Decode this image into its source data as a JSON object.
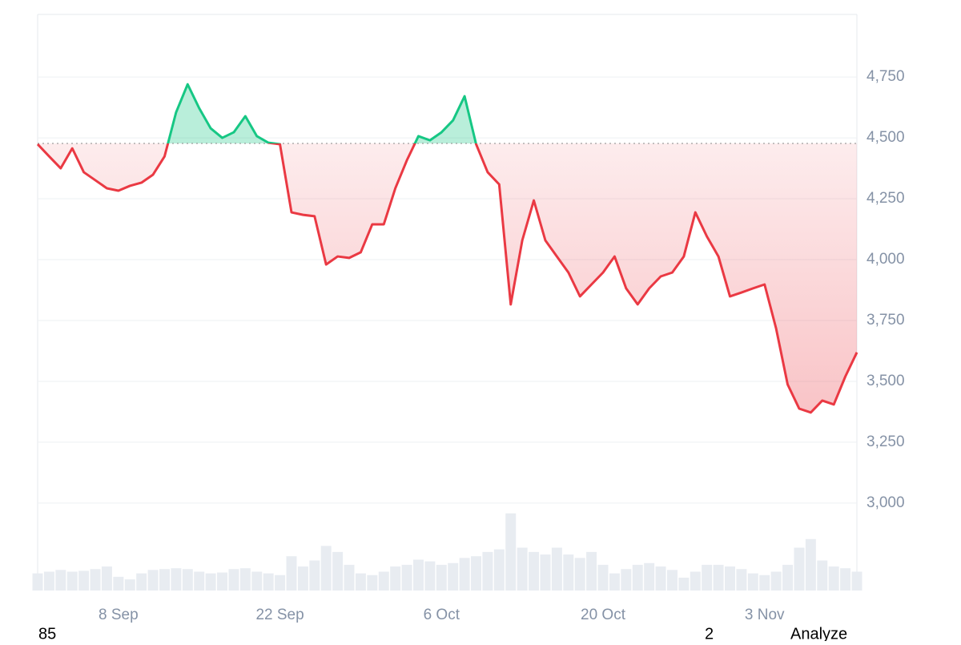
{
  "chart_data": {
    "type": "line",
    "x": [
      "1 Sep",
      "2 Sep",
      "3 Sep",
      "4 Sep",
      "5 Sep",
      "6 Sep",
      "7 Sep",
      "8 Sep",
      "9 Sep",
      "10 Sep",
      "11 Sep",
      "12 Sep",
      "13 Sep",
      "14 Sep",
      "15 Sep",
      "16 Sep",
      "17 Sep",
      "18 Sep",
      "19 Sep",
      "20 Sep",
      "21 Sep",
      "22 Sep",
      "23 Sep",
      "24 Sep",
      "25 Sep",
      "26 Sep",
      "27 Sep",
      "28 Sep",
      "29 Sep",
      "30 Sep",
      "1 Oct",
      "2 Oct",
      "3 Oct",
      "4 Oct",
      "5 Oct",
      "6 Oct",
      "7 Oct",
      "8 Oct",
      "9 Oct",
      "10 Oct",
      "11 Oct",
      "12 Oct",
      "13 Oct",
      "14 Oct",
      "15 Oct",
      "16 Oct",
      "17 Oct",
      "18 Oct",
      "19 Oct",
      "20 Oct",
      "21 Oct",
      "22 Oct",
      "23 Oct",
      "24 Oct",
      "25 Oct",
      "26 Oct",
      "27 Oct",
      "28 Oct",
      "29 Oct",
      "30 Oct",
      "31 Oct",
      "1 Nov",
      "2 Nov",
      "3 Nov",
      "4 Nov",
      "5 Nov",
      "6 Nov",
      "7 Nov",
      "8 Nov",
      "9 Nov",
      "10 Nov",
      "11 Nov"
    ],
    "series": [
      {
        "name": "Price",
        "values": [
          4474,
          4424,
          4375,
          4457,
          4359,
          4326,
          4293,
          4283,
          4303,
          4316,
          4349,
          4424,
          4605,
          4720,
          4622,
          4539,
          4500,
          4523,
          4589,
          4507,
          4480,
          4474,
          4194,
          4184,
          4178,
          3980,
          4013,
          4007,
          4030,
          4145,
          4145,
          4293,
          4408,
          4507,
          4490,
          4523,
          4572,
          4671,
          4474,
          4359,
          4309,
          3816,
          4079,
          4243,
          4079,
          4013,
          3947,
          3849,
          3898,
          3947,
          4013,
          3882,
          3816,
          3882,
          3931,
          3947,
          4013,
          4194,
          4095,
          4013,
          3849,
          3865,
          3882,
          3898,
          3717,
          3487,
          3388,
          3372,
          3421,
          3405,
          3520,
          3619
        ]
      },
      {
        "name": "Volume",
        "axis": "y2",
        "color": "#e8ecf1",
        "values": [
          20,
          22,
          24,
          22,
          23,
          25,
          28,
          16,
          13,
          20,
          24,
          25,
          26,
          25,
          22,
          20,
          21,
          25,
          26,
          22,
          20,
          18,
          40,
          28,
          35,
          52,
          45,
          30,
          20,
          18,
          22,
          28,
          30,
          36,
          34,
          30,
          32,
          38,
          40,
          45,
          48,
          90,
          50,
          45,
          42,
          50,
          42,
          38,
          45,
          30,
          20,
          25,
          30,
          32,
          28,
          24,
          15,
          22,
          30,
          30,
          28,
          25,
          20,
          18,
          22,
          30,
          50,
          60,
          35,
          28,
          26,
          22
        ]
      }
    ],
    "reference": 4477,
    "up_color": "#16c784",
    "down_color": "#ea3943",
    "ylim": [
      2641,
      5007
    ],
    "yticks": [
      {
        "value": 3000,
        "label": "3,000"
      },
      {
        "value": 3250,
        "label": "3,250"
      },
      {
        "value": 3500,
        "label": "3,500"
      },
      {
        "value": 3750,
        "label": "3,750"
      },
      {
        "value": 4000,
        "label": "4,000"
      },
      {
        "value": 4250,
        "label": "4,250"
      },
      {
        "value": 4500,
        "label": "4,500"
      },
      {
        "value": 4750,
        "label": "4,750"
      }
    ],
    "y2lim": [
      0,
      100
    ],
    "xticks": [
      "8 Sep",
      "22 Sep",
      "6 Oct",
      "20 Oct",
      "3 Nov"
    ],
    "grid": true
  },
  "footer": [
    "85",
    "2",
    "Analyze"
  ]
}
